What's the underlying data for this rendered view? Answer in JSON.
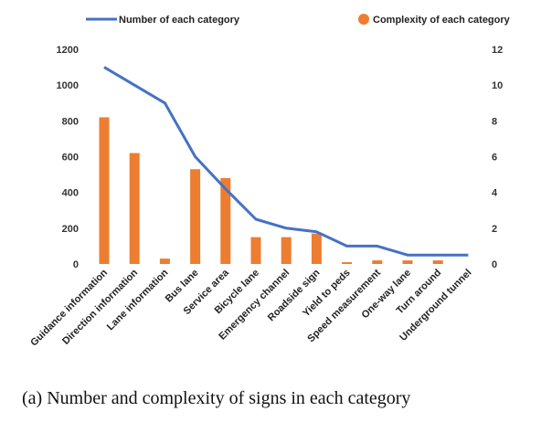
{
  "chart_data": {
    "type": "bar",
    "categories": [
      "Guidance information",
      "Direction information",
      "Lane information",
      "Bus lane",
      "Service area",
      "Bicycle lane",
      "Emergency channel",
      "Roadside sign",
      "Yield to peds",
      "Speed measurement",
      "One-way lane",
      "Turn around",
      "Underground tunnel"
    ],
    "series": [
      {
        "name": "Number of each category",
        "kind": "line",
        "axis": "left",
        "color": "#4472C4",
        "values": [
          1100,
          1000,
          900,
          600,
          420,
          250,
          200,
          180,
          100,
          100,
          50,
          50,
          50
        ]
      },
      {
        "name": "Complexity of each category",
        "kind": "bar",
        "axis": "right",
        "color": "#ED7D31",
        "values": [
          8.2,
          6.2,
          0.3,
          5.3,
          4.8,
          1.5,
          1.5,
          1.7,
          0.1,
          0.2,
          0.2,
          0.2,
          0
        ]
      }
    ],
    "left_axis": {
      "ylim": [
        0,
        1200
      ],
      "ticks": [
        "0",
        "200",
        "400",
        "600",
        "800",
        "1000",
        "1200"
      ]
    },
    "right_axis": {
      "ylim": [
        0,
        12
      ],
      "ticks": [
        "0",
        "2",
        "4",
        "6",
        "8",
        "10",
        "12"
      ]
    },
    "grid": false,
    "legend_position": "top"
  },
  "caption": "(a)  Number and complexity of signs in each category"
}
